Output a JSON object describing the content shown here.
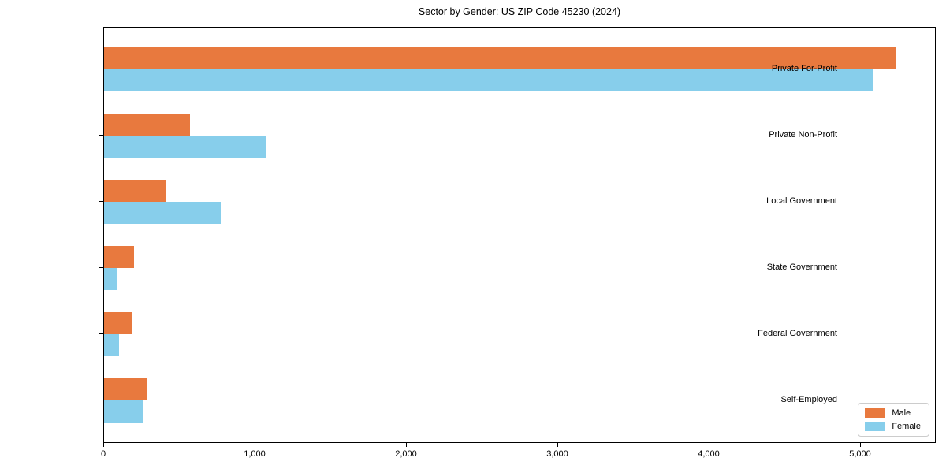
{
  "chart_data": {
    "type": "bar",
    "orientation": "horizontal",
    "title": "Sector by Gender: US ZIP Code 45230 (2024)",
    "categories": [
      "Private For-Profit",
      "Private Non-Profit",
      "Local Government",
      "State Government",
      "Federal Government",
      "Self-Employed"
    ],
    "series": [
      {
        "name": "Male",
        "color": "#e8793e",
        "values": [
          5230,
          570,
          410,
          200,
          185,
          285
        ]
      },
      {
        "name": "Female",
        "color": "#87ceeb",
        "values": [
          5080,
          1070,
          770,
          90,
          100,
          255
        ]
      }
    ],
    "xlabel": "",
    "ylabel": "",
    "xlim": [
      0,
      5500
    ],
    "xticks": [
      0,
      1000,
      2000,
      3000,
      4000,
      5000
    ],
    "xtick_labels": [
      "0",
      "1,000",
      "2,000",
      "3,000",
      "4,000",
      "5,000"
    ],
    "legend_position": "lower right",
    "grid": false
  }
}
